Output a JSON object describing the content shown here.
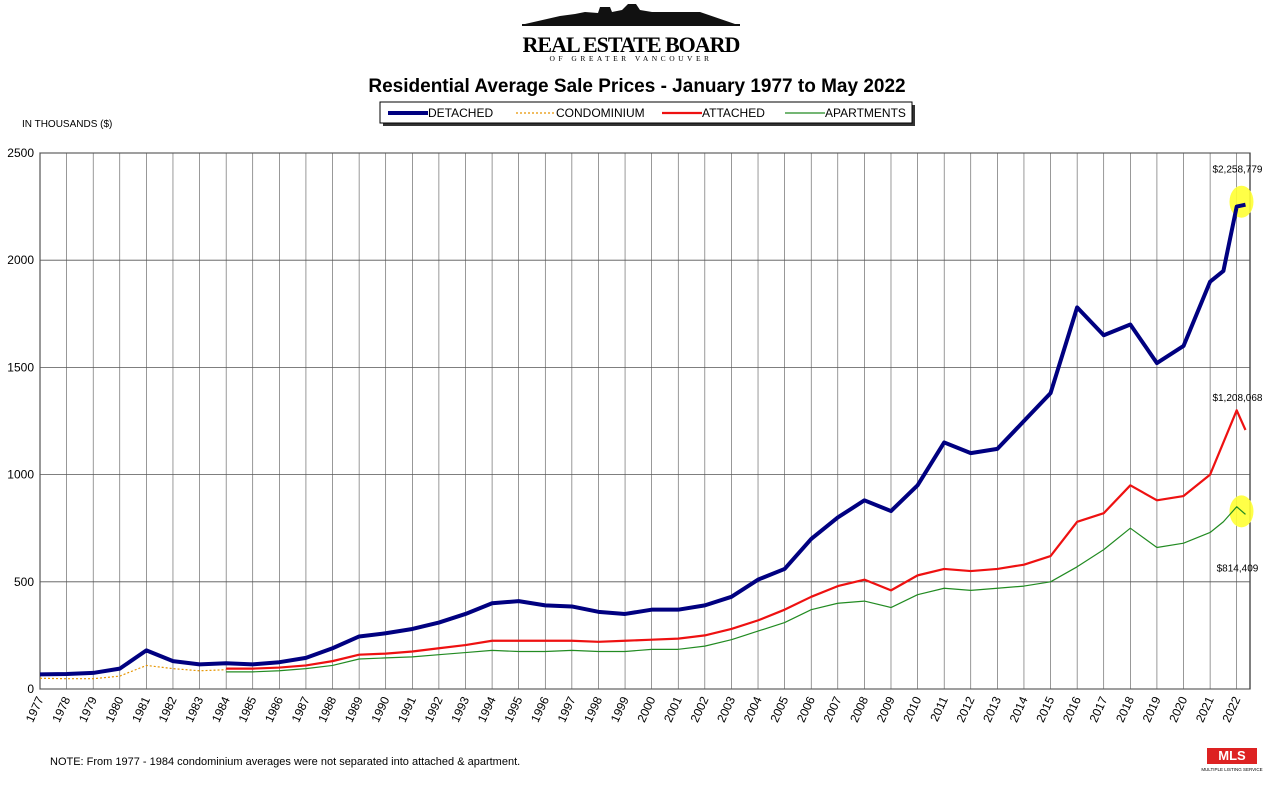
{
  "header": {
    "logo_title": "REAL ESTATE BOARD",
    "logo_subtitle": "OF GREATER VANCOUVER",
    "mls": "MLS",
    "mls_caption": "MULTIPLE LISTING SERVICE"
  },
  "chart_data": {
    "type": "line",
    "title": "Residential Average Sale Prices  -  January 1977 to May 2022",
    "y_label": "IN THOUSANDS ($)",
    "note": "NOTE:  From 1977 - 1984 condominium averages were not separated into attached & apartment.",
    "legend": "top",
    "grid": true,
    "xlim": [
      1977,
      2022.5
    ],
    "xticks": [
      1977,
      1978,
      1979,
      1980,
      1981,
      1982,
      1983,
      1984,
      1985,
      1986,
      1987,
      1988,
      1989,
      1990,
      1991,
      1992,
      1993,
      1994,
      1995,
      1996,
      1997,
      1998,
      1999,
      2000,
      2001,
      2002,
      2003,
      2004,
      2005,
      2006,
      2007,
      2008,
      2009,
      2010,
      2011,
      2012,
      2013,
      2014,
      2015,
      2016,
      2017,
      2018,
      2019,
      2020,
      2021,
      2022
    ],
    "ylim": [
      0,
      2500
    ],
    "yticks": [
      0,
      500,
      1000,
      1500,
      2000,
      2500
    ],
    "x": [
      1977,
      1978,
      1979,
      1980,
      1981,
      1982,
      1983,
      1984,
      1985,
      1986,
      1987,
      1988,
      1989,
      1990,
      1991,
      1992,
      1993,
      1994,
      1995,
      1996,
      1997,
      1998,
      1999,
      2000,
      2001,
      2002,
      2003,
      2004,
      2005,
      2006,
      2007,
      2008,
      2009,
      2010,
      2011,
      2012,
      2013,
      2014,
      2015,
      2016,
      2017,
      2018,
      2019,
      2020,
      2021,
      2021.5,
      2022,
      2022.33
    ],
    "series": [
      {
        "name": "DETACHED",
        "color": "#000080",
        "width": 4,
        "dash": "none",
        "values": [
          68,
          70,
          75,
          95,
          180,
          130,
          115,
          120,
          115,
          125,
          145,
          190,
          245,
          260,
          280,
          310,
          350,
          400,
          410,
          390,
          385,
          360,
          350,
          370,
          370,
          390,
          430,
          510,
          560,
          700,
          800,
          880,
          830,
          950,
          1150,
          1100,
          1120,
          1250,
          1380,
          1780,
          1650,
          1700,
          1520,
          1600,
          1900,
          1950,
          2250,
          2258.779
        ],
        "value_labels": [
          null,
          null,
          null,
          null,
          null,
          null,
          null,
          null,
          null,
          null,
          null,
          null,
          null,
          null,
          null,
          null,
          null,
          null,
          null,
          null,
          null,
          null,
          null,
          null,
          null,
          null,
          null,
          null,
          null,
          null,
          null,
          null,
          null,
          null,
          null,
          null,
          null,
          null,
          null,
          null,
          null,
          null,
          null,
          null,
          null,
          null,
          null,
          "$2,258,779"
        ]
      },
      {
        "name": "CONDOMINIUM",
        "color": "#e69500",
        "width": 1.2,
        "dash": "2 2",
        "values": [
          50,
          48,
          48,
          60,
          110,
          95,
          85,
          90,
          null,
          null,
          null,
          null,
          null,
          null,
          null,
          null,
          null,
          null,
          null,
          null,
          null,
          null,
          null,
          null,
          null,
          null,
          null,
          null,
          null,
          null,
          null,
          null,
          null,
          null,
          null,
          null,
          null,
          null,
          null,
          null,
          null,
          null,
          null,
          null,
          null,
          null,
          null,
          null
        ]
      },
      {
        "name": "ATTACHED",
        "color": "#ee1111",
        "width": 2.2,
        "dash": "none",
        "values": [
          null,
          null,
          null,
          null,
          null,
          null,
          null,
          95,
          95,
          100,
          110,
          130,
          160,
          165,
          175,
          190,
          205,
          225,
          225,
          225,
          225,
          220,
          225,
          230,
          235,
          250,
          280,
          320,
          370,
          430,
          480,
          510,
          460,
          530,
          560,
          550,
          560,
          580,
          620,
          780,
          820,
          950,
          880,
          900,
          1000,
          1150,
          1300,
          1208.068
        ],
        "value_labels": [
          null,
          null,
          null,
          null,
          null,
          null,
          null,
          null,
          null,
          null,
          null,
          null,
          null,
          null,
          null,
          null,
          null,
          null,
          null,
          null,
          null,
          null,
          null,
          null,
          null,
          null,
          null,
          null,
          null,
          null,
          null,
          null,
          null,
          null,
          null,
          null,
          null,
          null,
          null,
          null,
          null,
          null,
          null,
          null,
          null,
          null,
          null,
          "$1,208,068"
        ]
      },
      {
        "name": "APARTMENTS",
        "color": "#228b22",
        "width": 1.2,
        "dash": "none",
        "values": [
          null,
          null,
          null,
          null,
          null,
          null,
          null,
          80,
          80,
          85,
          95,
          110,
          140,
          145,
          150,
          160,
          170,
          180,
          175,
          175,
          180,
          175,
          175,
          185,
          185,
          200,
          230,
          270,
          310,
          370,
          400,
          410,
          380,
          440,
          470,
          460,
          470,
          480,
          500,
          570,
          650,
          750,
          660,
          680,
          730,
          780,
          850,
          814.409
        ],
        "value_labels": [
          null,
          null,
          null,
          null,
          null,
          null,
          null,
          null,
          null,
          null,
          null,
          null,
          null,
          null,
          null,
          null,
          null,
          null,
          null,
          null,
          null,
          null,
          null,
          null,
          null,
          null,
          null,
          null,
          null,
          null,
          null,
          null,
          null,
          null,
          null,
          null,
          null,
          null,
          null,
          null,
          null,
          null,
          null,
          null,
          null,
          null,
          null,
          "$814,409"
        ]
      }
    ]
  }
}
